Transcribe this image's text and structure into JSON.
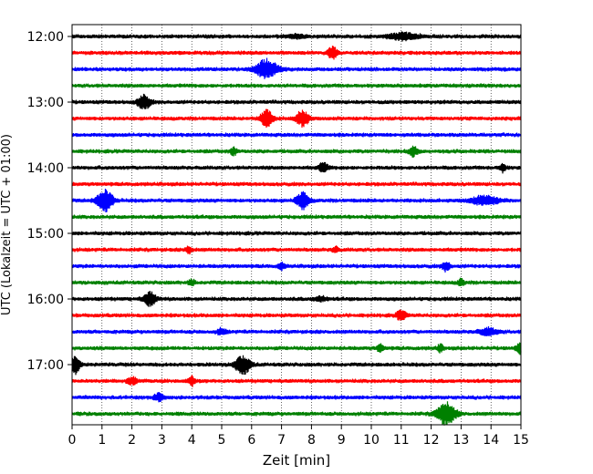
{
  "chart_data": {
    "type": "line",
    "xlabel": "Zeit  [min]",
    "ylabel": "UTC (Lokalzeit = UTC + 01:00)",
    "xlim": [
      0,
      15
    ],
    "x_ticks": [
      "0",
      "1",
      "2",
      "3",
      "4",
      "5",
      "6",
      "7",
      "8",
      "9",
      "10",
      "11",
      "12",
      "13",
      "14",
      "15"
    ],
    "y_ticks": [
      "12:00",
      "13:00",
      "14:00",
      "15:00",
      "16:00",
      "17:00"
    ],
    "row_minutes": 15,
    "grid": {
      "vertical": true,
      "style": "dotted"
    },
    "colors": [
      "#000000",
      "#ff0000",
      "#0000ff",
      "#008000"
    ],
    "rows": [
      {
        "time": "12:00",
        "color": "#000000",
        "bursts": [
          {
            "x": 11.1,
            "amp": 0.3,
            "w": 0.5
          },
          {
            "x": 7.5,
            "amp": 0.15,
            "w": 0.3
          }
        ]
      },
      {
        "time": "12:15",
        "color": "#ff0000",
        "bursts": [
          {
            "x": 8.7,
            "amp": 0.55,
            "w": 0.15
          }
        ]
      },
      {
        "time": "12:30",
        "color": "#0000ff",
        "bursts": [
          {
            "x": 6.5,
            "amp": 0.85,
            "w": 0.35
          }
        ]
      },
      {
        "time": "12:45",
        "color": "#008000",
        "bursts": []
      },
      {
        "time": "13:00",
        "color": "#000000",
        "bursts": [
          {
            "x": 2.4,
            "amp": 0.65,
            "w": 0.2
          }
        ]
      },
      {
        "time": "13:15",
        "color": "#ff0000",
        "bursts": [
          {
            "x": 6.5,
            "amp": 0.75,
            "w": 0.2
          },
          {
            "x": 7.7,
            "amp": 0.7,
            "w": 0.2
          }
        ]
      },
      {
        "time": "13:30",
        "color": "#0000ff",
        "bursts": []
      },
      {
        "time": "13:45",
        "color": "#008000",
        "bursts": [
          {
            "x": 5.4,
            "amp": 0.35,
            "w": 0.1
          },
          {
            "x": 11.4,
            "amp": 0.4,
            "w": 0.15
          }
        ]
      },
      {
        "time": "14:00",
        "color": "#000000",
        "bursts": [
          {
            "x": 8.4,
            "amp": 0.4,
            "w": 0.15
          },
          {
            "x": 14.4,
            "amp": 0.35,
            "w": 0.1
          }
        ]
      },
      {
        "time": "14:15",
        "color": "#ff0000",
        "bursts": []
      },
      {
        "time": "14:30",
        "color": "#0000ff",
        "bursts": [
          {
            "x": 1.1,
            "amp": 1.0,
            "w": 0.25
          },
          {
            "x": 7.7,
            "amp": 0.75,
            "w": 0.2
          },
          {
            "x": 13.8,
            "amp": 0.4,
            "w": 0.45
          }
        ]
      },
      {
        "time": "14:45",
        "color": "#008000",
        "bursts": []
      },
      {
        "time": "15:00",
        "color": "#000000",
        "bursts": []
      },
      {
        "time": "15:15",
        "color": "#ff0000",
        "bursts": [
          {
            "x": 3.9,
            "amp": 0.35,
            "w": 0.1
          },
          {
            "x": 8.8,
            "amp": 0.25,
            "w": 0.1
          }
        ]
      },
      {
        "time": "15:30",
        "color": "#0000ff",
        "bursts": [
          {
            "x": 7.0,
            "amp": 0.3,
            "w": 0.1
          },
          {
            "x": 12.5,
            "amp": 0.45,
            "w": 0.12
          }
        ]
      },
      {
        "time": "15:45",
        "color": "#008000",
        "bursts": [
          {
            "x": 4.0,
            "amp": 0.25,
            "w": 0.1
          },
          {
            "x": 13.0,
            "amp": 0.3,
            "w": 0.1
          }
        ]
      },
      {
        "time": "16:00",
        "color": "#000000",
        "bursts": [
          {
            "x": 2.6,
            "amp": 0.6,
            "w": 0.2
          },
          {
            "x": 8.3,
            "amp": 0.2,
            "w": 0.2
          }
        ]
      },
      {
        "time": "16:15",
        "color": "#ff0000",
        "bursts": [
          {
            "x": 11.0,
            "amp": 0.45,
            "w": 0.15
          }
        ]
      },
      {
        "time": "16:30",
        "color": "#0000ff",
        "bursts": [
          {
            "x": 5.0,
            "amp": 0.25,
            "w": 0.15
          },
          {
            "x": 13.9,
            "amp": 0.3,
            "w": 0.3
          }
        ]
      },
      {
        "time": "16:45",
        "color": "#008000",
        "bursts": [
          {
            "x": 10.3,
            "amp": 0.35,
            "w": 0.1
          },
          {
            "x": 12.3,
            "amp": 0.3,
            "w": 0.1
          },
          {
            "x": 15.0,
            "amp": 0.45,
            "w": 0.15
          }
        ]
      },
      {
        "time": "17:00",
        "color": "#000000",
        "bursts": [
          {
            "x": 0.1,
            "amp": 0.8,
            "w": 0.15
          },
          {
            "x": 5.7,
            "amp": 0.8,
            "w": 0.25
          }
        ]
      },
      {
        "time": "17:15",
        "color": "#ff0000",
        "bursts": [
          {
            "x": 2.0,
            "amp": 0.35,
            "w": 0.15
          },
          {
            "x": 4.0,
            "amp": 0.4,
            "w": 0.1
          }
        ]
      },
      {
        "time": "17:30",
        "color": "#0000ff",
        "bursts": [
          {
            "x": 2.9,
            "amp": 0.35,
            "w": 0.15
          }
        ]
      },
      {
        "time": "17:45",
        "color": "#008000",
        "bursts": [
          {
            "x": 12.5,
            "amp": 1.0,
            "w": 0.3
          }
        ]
      }
    ]
  }
}
